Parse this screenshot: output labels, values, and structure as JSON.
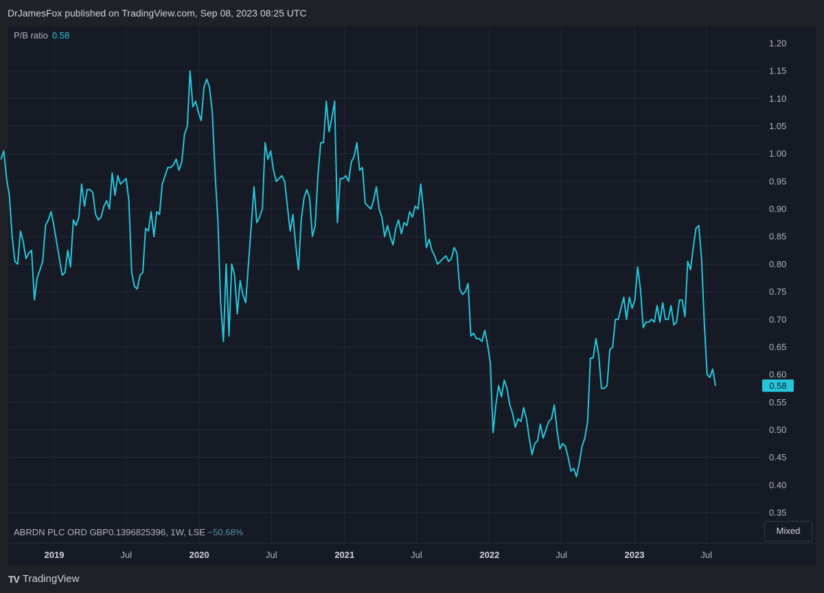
{
  "header": {
    "published_line": "DrJamesFox published on TradingView.com, Sep 08, 2023 08:25 UTC"
  },
  "legend": {
    "label": "P/B ratio",
    "value": "0.58"
  },
  "symbol": {
    "description": "ABRDN PLC ORD GBP0.1396825396, 1W, LSE",
    "change": "−50.68%"
  },
  "scale_mode_button": "Mixed",
  "brand": {
    "logo": "TV",
    "name": "TradingView"
  },
  "colors": {
    "line": "#26c6da",
    "background": "#161a25",
    "grid": "#262a36",
    "text": "#b2b5be"
  },
  "chart_data": {
    "type": "line",
    "title": "",
    "xlabel": "",
    "ylabel": "",
    "ylim": [
      0.35,
      1.2
    ],
    "y_ticks": [
      "1.20",
      "1.15",
      "1.10",
      "1.05",
      "1.00",
      "0.95",
      "0.90",
      "0.85",
      "0.80",
      "0.75",
      "0.70",
      "0.65",
      "0.60",
      "0.55",
      "0.50",
      "0.45",
      "0.40",
      "0.35"
    ],
    "x_ticks": [
      {
        "label": "2019",
        "date": "2019-01-01",
        "major": true
      },
      {
        "label": "Jul",
        "date": "2019-07-01",
        "major": false
      },
      {
        "label": "2020",
        "date": "2020-01-01",
        "major": true
      },
      {
        "label": "Jul",
        "date": "2020-07-01",
        "major": false
      },
      {
        "label": "2021",
        "date": "2021-01-01",
        "major": true
      },
      {
        "label": "Jul",
        "date": "2021-07-01",
        "major": false
      },
      {
        "label": "2022",
        "date": "2022-01-01",
        "major": true
      },
      {
        "label": "Jul",
        "date": "2022-07-01",
        "major": false
      },
      {
        "label": "2023",
        "date": "2023-01-01",
        "major": true
      },
      {
        "label": "Jul",
        "date": "2023-07-01",
        "major": false
      }
    ],
    "last_value_label": "0.58",
    "series": [
      {
        "values": [
          [
            "2018-08-20",
            0.99
          ],
          [
            "2018-08-27",
            1.005
          ],
          [
            "2018-09-03",
            0.955
          ],
          [
            "2018-09-10",
            0.925
          ],
          [
            "2018-09-17",
            0.85
          ],
          [
            "2018-09-24",
            0.805
          ],
          [
            "2018-10-01",
            0.8
          ],
          [
            "2018-10-08",
            0.86
          ],
          [
            "2018-10-15",
            0.84
          ],
          [
            "2018-10-22",
            0.81
          ],
          [
            "2018-10-29",
            0.82
          ],
          [
            "2018-11-05",
            0.825
          ],
          [
            "2018-11-12",
            0.735
          ],
          [
            "2018-11-19",
            0.775
          ],
          [
            "2018-11-26",
            0.79
          ],
          [
            "2018-12-03",
            0.805
          ],
          [
            "2018-12-10",
            0.87
          ],
          [
            "2018-12-17",
            0.88
          ],
          [
            "2018-12-24",
            0.895
          ],
          [
            "2018-12-31",
            0.87
          ],
          [
            "2019-01-07",
            0.84
          ],
          [
            "2019-01-14",
            0.81
          ],
          [
            "2019-01-21",
            0.78
          ],
          [
            "2019-01-28",
            0.785
          ],
          [
            "2019-02-04",
            0.825
          ],
          [
            "2019-02-11",
            0.795
          ],
          [
            "2019-02-18",
            0.88
          ],
          [
            "2019-02-25",
            0.87
          ],
          [
            "2019-03-04",
            0.885
          ],
          [
            "2019-03-11",
            0.945
          ],
          [
            "2019-03-18",
            0.905
          ],
          [
            "2019-03-25",
            0.935
          ],
          [
            "2019-04-01",
            0.935
          ],
          [
            "2019-04-08",
            0.93
          ],
          [
            "2019-04-15",
            0.89
          ],
          [
            "2019-04-22",
            0.88
          ],
          [
            "2019-04-29",
            0.885
          ],
          [
            "2019-05-06",
            0.905
          ],
          [
            "2019-05-13",
            0.915
          ],
          [
            "2019-05-20",
            0.9
          ],
          [
            "2019-05-27",
            0.965
          ],
          [
            "2019-06-03",
            0.925
          ],
          [
            "2019-06-10",
            0.96
          ],
          [
            "2019-06-17",
            0.945
          ],
          [
            "2019-06-24",
            0.95
          ],
          [
            "2019-07-01",
            0.955
          ],
          [
            "2019-07-08",
            0.915
          ],
          [
            "2019-07-15",
            0.785
          ],
          [
            "2019-07-22",
            0.76
          ],
          [
            "2019-07-29",
            0.755
          ],
          [
            "2019-08-05",
            0.78
          ],
          [
            "2019-08-12",
            0.785
          ],
          [
            "2019-08-19",
            0.865
          ],
          [
            "2019-08-26",
            0.86
          ],
          [
            "2019-09-02",
            0.895
          ],
          [
            "2019-09-09",
            0.85
          ],
          [
            "2019-09-16",
            0.895
          ],
          [
            "2019-09-23",
            0.89
          ],
          [
            "2019-09-30",
            0.945
          ],
          [
            "2019-10-07",
            0.96
          ],
          [
            "2019-10-14",
            0.975
          ],
          [
            "2019-10-21",
            0.975
          ],
          [
            "2019-10-28",
            0.98
          ],
          [
            "2019-11-04",
            0.99
          ],
          [
            "2019-11-11",
            0.97
          ],
          [
            "2019-11-18",
            0.985
          ],
          [
            "2019-11-25",
            1.035
          ],
          [
            "2019-12-02",
            1.05
          ],
          [
            "2019-12-09",
            1.15
          ],
          [
            "2019-12-16",
            1.085
          ],
          [
            "2019-12-23",
            1.095
          ],
          [
            "2019-12-30",
            1.075
          ],
          [
            "2020-01-06",
            1.06
          ],
          [
            "2020-01-13",
            1.12
          ],
          [
            "2020-01-20",
            1.135
          ],
          [
            "2020-01-27",
            1.12
          ],
          [
            "2020-02-03",
            1.075
          ],
          [
            "2020-02-10",
            0.965
          ],
          [
            "2020-02-17",
            0.88
          ],
          [
            "2020-02-24",
            0.73
          ],
          [
            "2020-03-02",
            0.66
          ],
          [
            "2020-03-09",
            0.8
          ],
          [
            "2020-03-16",
            0.67
          ],
          [
            "2020-03-23",
            0.8
          ],
          [
            "2020-03-30",
            0.78
          ],
          [
            "2020-04-06",
            0.71
          ],
          [
            "2020-04-13",
            0.77
          ],
          [
            "2020-04-20",
            0.745
          ],
          [
            "2020-04-27",
            0.73
          ],
          [
            "2020-05-04",
            0.8
          ],
          [
            "2020-05-11",
            0.87
          ],
          [
            "2020-05-18",
            0.94
          ],
          [
            "2020-05-25",
            0.875
          ],
          [
            "2020-06-01",
            0.885
          ],
          [
            "2020-06-08",
            0.9
          ],
          [
            "2020-06-15",
            1.02
          ],
          [
            "2020-06-22",
            0.99
          ],
          [
            "2020-06-29",
            1.005
          ],
          [
            "2020-07-06",
            0.97
          ],
          [
            "2020-07-13",
            0.95
          ],
          [
            "2020-07-20",
            0.955
          ],
          [
            "2020-07-27",
            0.96
          ],
          [
            "2020-08-03",
            0.95
          ],
          [
            "2020-08-10",
            0.905
          ],
          [
            "2020-08-17",
            0.86
          ],
          [
            "2020-08-24",
            0.89
          ],
          [
            "2020-08-31",
            0.835
          ],
          [
            "2020-09-07",
            0.79
          ],
          [
            "2020-09-14",
            0.88
          ],
          [
            "2020-09-21",
            0.92
          ],
          [
            "2020-09-28",
            0.935
          ],
          [
            "2020-10-05",
            0.92
          ],
          [
            "2020-10-12",
            0.85
          ],
          [
            "2020-10-19",
            0.87
          ],
          [
            "2020-10-26",
            0.96
          ],
          [
            "2020-11-02",
            1.02
          ],
          [
            "2020-11-09",
            1.02
          ],
          [
            "2020-11-16",
            1.095
          ],
          [
            "2020-11-23",
            1.04
          ],
          [
            "2020-11-30",
            1.065
          ],
          [
            "2020-12-07",
            1.095
          ],
          [
            "2020-12-14",
            0.875
          ],
          [
            "2020-12-21",
            0.955
          ],
          [
            "2020-12-28",
            0.955
          ],
          [
            "2021-01-04",
            0.96
          ],
          [
            "2021-01-11",
            0.95
          ],
          [
            "2021-01-18",
            0.985
          ],
          [
            "2021-01-25",
            0.995
          ],
          [
            "2021-02-01",
            1.02
          ],
          [
            "2021-02-08",
            0.97
          ],
          [
            "2021-02-15",
            0.975
          ],
          [
            "2021-02-22",
            0.91
          ],
          [
            "2021-03-01",
            0.905
          ],
          [
            "2021-03-08",
            0.9
          ],
          [
            "2021-03-15",
            0.915
          ],
          [
            "2021-03-22",
            0.94
          ],
          [
            "2021-03-29",
            0.9
          ],
          [
            "2021-04-05",
            0.885
          ],
          [
            "2021-04-12",
            0.85
          ],
          [
            "2021-04-19",
            0.87
          ],
          [
            "2021-04-26",
            0.85
          ],
          [
            "2021-05-03",
            0.835
          ],
          [
            "2021-05-10",
            0.865
          ],
          [
            "2021-05-17",
            0.88
          ],
          [
            "2021-05-24",
            0.855
          ],
          [
            "2021-05-31",
            0.875
          ],
          [
            "2021-06-07",
            0.87
          ],
          [
            "2021-06-14",
            0.895
          ],
          [
            "2021-06-21",
            0.885
          ],
          [
            "2021-06-28",
            0.905
          ],
          [
            "2021-07-05",
            0.9
          ],
          [
            "2021-07-12",
            0.945
          ],
          [
            "2021-07-19",
            0.895
          ],
          [
            "2021-07-26",
            0.83
          ],
          [
            "2021-08-02",
            0.845
          ],
          [
            "2021-08-09",
            0.825
          ],
          [
            "2021-08-16",
            0.815
          ],
          [
            "2021-08-23",
            0.8
          ],
          [
            "2021-08-30",
            0.805
          ],
          [
            "2021-09-06",
            0.81
          ],
          [
            "2021-09-13",
            0.815
          ],
          [
            "2021-09-20",
            0.805
          ],
          [
            "2021-09-27",
            0.81
          ],
          [
            "2021-10-04",
            0.83
          ],
          [
            "2021-10-11",
            0.82
          ],
          [
            "2021-10-18",
            0.755
          ],
          [
            "2021-10-25",
            0.745
          ],
          [
            "2021-11-01",
            0.75
          ],
          [
            "2021-11-08",
            0.765
          ],
          [
            "2021-11-15",
            0.67
          ],
          [
            "2021-11-22",
            0.675
          ],
          [
            "2021-11-29",
            0.665
          ],
          [
            "2021-12-06",
            0.665
          ],
          [
            "2021-12-13",
            0.66
          ],
          [
            "2021-12-20",
            0.68
          ],
          [
            "2021-12-27",
            0.655
          ],
          [
            "2022-01-03",
            0.62
          ],
          [
            "2022-01-10",
            0.495
          ],
          [
            "2022-01-17",
            0.545
          ],
          [
            "2022-01-24",
            0.58
          ],
          [
            "2022-01-31",
            0.56
          ],
          [
            "2022-02-07",
            0.59
          ],
          [
            "2022-02-14",
            0.575
          ],
          [
            "2022-02-21",
            0.545
          ],
          [
            "2022-02-28",
            0.53
          ],
          [
            "2022-03-07",
            0.505
          ],
          [
            "2022-03-14",
            0.52
          ],
          [
            "2022-03-21",
            0.515
          ],
          [
            "2022-03-28",
            0.54
          ],
          [
            "2022-04-04",
            0.52
          ],
          [
            "2022-04-11",
            0.485
          ],
          [
            "2022-04-18",
            0.455
          ],
          [
            "2022-04-25",
            0.475
          ],
          [
            "2022-05-02",
            0.48
          ],
          [
            "2022-05-09",
            0.51
          ],
          [
            "2022-05-16",
            0.485
          ],
          [
            "2022-05-23",
            0.5
          ],
          [
            "2022-05-30",
            0.515
          ],
          [
            "2022-06-06",
            0.52
          ],
          [
            "2022-06-13",
            0.545
          ],
          [
            "2022-06-20",
            0.5
          ],
          [
            "2022-06-27",
            0.465
          ],
          [
            "2022-07-04",
            0.475
          ],
          [
            "2022-07-11",
            0.47
          ],
          [
            "2022-07-18",
            0.45
          ],
          [
            "2022-07-25",
            0.425
          ],
          [
            "2022-08-01",
            0.43
          ],
          [
            "2022-08-08",
            0.415
          ],
          [
            "2022-08-15",
            0.44
          ],
          [
            "2022-08-22",
            0.47
          ],
          [
            "2022-08-29",
            0.485
          ],
          [
            "2022-09-05",
            0.515
          ],
          [
            "2022-09-12",
            0.63
          ],
          [
            "2022-09-19",
            0.63
          ],
          [
            "2022-09-26",
            0.665
          ],
          [
            "2022-10-03",
            0.635
          ],
          [
            "2022-10-10",
            0.575
          ],
          [
            "2022-10-17",
            0.575
          ],
          [
            "2022-10-24",
            0.58
          ],
          [
            "2022-10-31",
            0.645
          ],
          [
            "2022-11-07",
            0.65
          ],
          [
            "2022-11-14",
            0.7
          ],
          [
            "2022-11-21",
            0.7
          ],
          [
            "2022-11-28",
            0.72
          ],
          [
            "2022-12-05",
            0.74
          ],
          [
            "2022-12-12",
            0.7
          ],
          [
            "2022-12-19",
            0.74
          ],
          [
            "2022-12-26",
            0.72
          ],
          [
            "2023-01-02",
            0.735
          ],
          [
            "2023-01-09",
            0.795
          ],
          [
            "2023-01-16",
            0.755
          ],
          [
            "2023-01-23",
            0.685
          ],
          [
            "2023-01-30",
            0.695
          ],
          [
            "2023-02-06",
            0.695
          ],
          [
            "2023-02-13",
            0.7
          ],
          [
            "2023-02-20",
            0.695
          ],
          [
            "2023-02-27",
            0.725
          ],
          [
            "2023-03-06",
            0.695
          ],
          [
            "2023-03-13",
            0.73
          ],
          [
            "2023-03-20",
            0.7
          ],
          [
            "2023-03-27",
            0.7
          ],
          [
            "2023-04-03",
            0.725
          ],
          [
            "2023-04-10",
            0.69
          ],
          [
            "2023-04-17",
            0.695
          ],
          [
            "2023-04-24",
            0.735
          ],
          [
            "2023-05-01",
            0.735
          ],
          [
            "2023-05-08",
            0.705
          ],
          [
            "2023-05-15",
            0.805
          ],
          [
            "2023-05-22",
            0.79
          ],
          [
            "2023-05-29",
            0.83
          ],
          [
            "2023-06-05",
            0.865
          ],
          [
            "2023-06-12",
            0.87
          ],
          [
            "2023-06-19",
            0.81
          ],
          [
            "2023-06-26",
            0.69
          ],
          [
            "2023-07-03",
            0.6
          ],
          [
            "2023-07-10",
            0.595
          ],
          [
            "2023-07-17",
            0.61
          ],
          [
            "2023-07-24",
            0.58
          ]
        ]
      }
    ]
  }
}
